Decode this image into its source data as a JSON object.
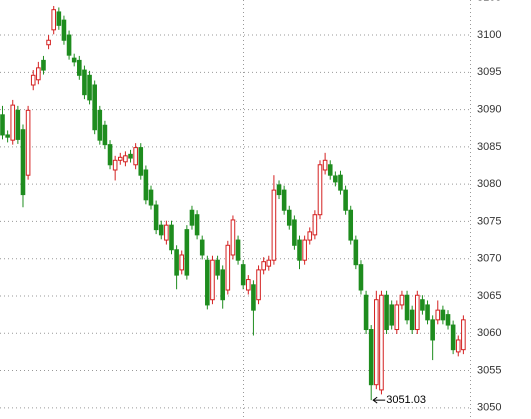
{
  "chart_data": {
    "type": "candlestick",
    "open": [
      3089.3,
      3086.6,
      3085.9,
      3089.9,
      3087.3,
      3081.2,
      3093.3,
      3094.0,
      3096.6,
      3098.7,
      3100.7,
      3103.1,
      3102.0,
      3100.0,
      3096.9,
      3096.6,
      3095.3,
      3094.6,
      3093.3,
      3089.9,
      3087.9,
      3085.3,
      3081.9,
      3083.2,
      3083.0,
      3084.0,
      3082.6,
      3084.9,
      3081.9,
      3079.2,
      3077.2,
      3074.5,
      3072.5,
      3074.5,
      3071.2,
      3068.5,
      3073.9,
      3076.5,
      3075.9,
      3072.5,
      3069.8,
      3064.5,
      3069.8,
      3068.5,
      3065.8,
      3070.5,
      3072.5,
      3069.2,
      3065.8,
      3066.5,
      3064.5,
      3068.5,
      3069.0,
      3069.8,
      3079.9,
      3079.2,
      3076.5,
      3075.2,
      3072.5,
      3069.8,
      3072.5,
      3073.2,
      3075.9,
      3081.9,
      3082.6,
      3081.1,
      3081.2,
      3079.2,
      3076.5,
      3072.5,
      3069.2,
      3065.1,
      3060.5,
      3053.1,
      3052.4,
      3065.1,
      3063.8,
      3060.5,
      3063.8,
      3065.1,
      3063.1,
      3060.5,
      3064.5,
      3063.8,
      3061.8,
      3061.8,
      3063.1,
      3062.5,
      3061.1,
      3057.5,
      3057.8
    ],
    "high": [
      3090.5,
      3087.2,
      3091.3,
      3090.5,
      3088.0,
      3090.5,
      3095.3,
      3096.4,
      3097.2,
      3100.0,
      3103.9,
      3103.7,
      3102.6,
      3100.6,
      3097.5,
      3097.2,
      3095.9,
      3095.2,
      3093.9,
      3090.5,
      3088.5,
      3085.9,
      3083.8,
      3084.2,
      3084.4,
      3084.6,
      3085.5,
      3085.5,
      3082.5,
      3079.8,
      3077.8,
      3075.1,
      3075.1,
      3075.1,
      3071.8,
      3071.1,
      3074.5,
      3077.1,
      3076.5,
      3073.1,
      3070.4,
      3070.4,
      3070.4,
      3069.1,
      3072.4,
      3075.8,
      3073.1,
      3069.8,
      3067.8,
      3067.1,
      3069.1,
      3070.2,
      3070.4,
      3081.2,
      3080.5,
      3079.8,
      3077.1,
      3075.8,
      3073.1,
      3073.1,
      3074.2,
      3076.5,
      3083.2,
      3084.2,
      3083.2,
      3081.7,
      3081.8,
      3079.8,
      3077.1,
      3073.1,
      3069.8,
      3065.7,
      3061.1,
      3065.7,
      3065.7,
      3065.7,
      3064.4,
      3064.4,
      3065.7,
      3065.7,
      3063.7,
      3065.7,
      3065.1,
      3064.4,
      3062.4,
      3064.4,
      3063.7,
      3063.1,
      3061.7,
      3059.7,
      3062.4
    ],
    "low": [
      3086.0,
      3085.6,
      3085.3,
      3085.4,
      3076.9,
      3080.6,
      3092.6,
      3093.4,
      3094.7,
      3098.1,
      3100.1,
      3100.7,
      3098.7,
      3096.7,
      3095.8,
      3094.0,
      3091.4,
      3090.7,
      3086.7,
      3085.3,
      3084.7,
      3082.0,
      3080.5,
      3082.6,
      3082.4,
      3082.9,
      3082.0,
      3080.6,
      3077.3,
      3076.6,
      3073.3,
      3072.6,
      3071.9,
      3070.6,
      3065.9,
      3067.9,
      3067.2,
      3073.9,
      3072.6,
      3069.9,
      3063.2,
      3063.9,
      3067.2,
      3063.3,
      3065.2,
      3069.9,
      3069.2,
      3065.9,
      3065.2,
      3059.7,
      3063.9,
      3067.9,
      3068.4,
      3069.2,
      3078.0,
      3075.9,
      3073.9,
      3071.2,
      3068.6,
      3069.2,
      3071.9,
      3072.6,
      3075.3,
      3081.3,
      3080.6,
      3079.7,
      3078.6,
      3075.9,
      3071.9,
      3068.6,
      3065.2,
      3059.9,
      3051.03,
      3052.5,
      3051.8,
      3059.9,
      3060.5,
      3059.9,
      3063.2,
      3061.2,
      3059.9,
      3059.9,
      3062.5,
      3061.2,
      3056.4,
      3061.2,
      3061.2,
      3060.5,
      3057.2,
      3056.9,
      3057.2
    ],
    "close": [
      3086.6,
      3086.3,
      3090.6,
      3086.0,
      3078.6,
      3089.9,
      3094.6,
      3095.6,
      3095.3,
      3099.3,
      3103.4,
      3101.3,
      3099.3,
      3097.3,
      3096.4,
      3094.6,
      3092.0,
      3091.3,
      3087.3,
      3085.9,
      3085.3,
      3082.6,
      3083.2,
      3083.6,
      3083.8,
      3083.5,
      3084.9,
      3081.2,
      3077.9,
      3077.2,
      3073.9,
      3073.2,
      3074.5,
      3071.2,
      3067.8,
      3070.5,
      3067.8,
      3074.5,
      3073.2,
      3070.5,
      3063.8,
      3069.8,
      3067.8,
      3064.5,
      3071.8,
      3075.2,
      3069.8,
      3066.5,
      3067.2,
      3063.1,
      3068.5,
      3069.6,
      3069.8,
      3079.2,
      3078.6,
      3076.5,
      3074.5,
      3071.8,
      3069.8,
      3072.5,
      3073.6,
      3075.9,
      3082.6,
      3083.2,
      3081.2,
      3080.3,
      3079.2,
      3076.5,
      3072.5,
      3069.2,
      3065.8,
      3060.5,
      3053.1,
      3064.5,
      3065.1,
      3060.5,
      3061.1,
      3063.8,
      3065.1,
      3061.8,
      3060.5,
      3065.1,
      3063.1,
      3061.8,
      3059.1,
      3063.1,
      3061.8,
      3061.1,
      3057.8,
      3059.1,
      3061.8
    ],
    "up_color": "#d42020",
    "down_color": "#1e8c1e",
    "ylim": [
      3048.5,
      3104.7
    ],
    "yticks": [
      3050,
      3055,
      3060,
      3065,
      3070,
      3075,
      3080,
      3085,
      3090,
      3095,
      3100,
      3105
    ],
    "grid": true,
    "annotation": {
      "text": "3051.03",
      "index": 72
    }
  }
}
